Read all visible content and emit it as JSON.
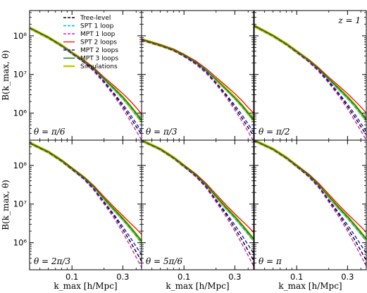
{
  "chart_data": {
    "type": "line",
    "layout": "2x3 panels, shared x and y axes",
    "xlabel": "k_max [h/Mpc]",
    "ylabel": "B(k_max, θ)",
    "xscale": "log",
    "yscale": "log",
    "xlim": [
      0.04,
      0.45
    ],
    "ylim": [
      200000,
      450000000
    ],
    "xticks": [
      {
        "value": 0.1,
        "label": "0.1"
      },
      {
        "value": 0.3,
        "label": "0.3"
      }
    ],
    "yticks": [
      {
        "value": 1000000,
        "label": "10⁶"
      },
      {
        "value": 10000000,
        "label": "10⁷"
      },
      {
        "value": 100000000,
        "label": "10⁸"
      }
    ],
    "redshift_label": "z = 1",
    "legend_location": "top of first panel",
    "x": [
      0.04,
      0.06,
      0.08,
      0.1,
      0.13,
      0.16,
      0.2,
      0.25,
      0.3,
      0.35,
      0.4,
      0.45
    ],
    "series": [
      {
        "name": "Tree-level",
        "color": "#000000",
        "dash": true
      },
      {
        "name": "SPT 1 loop",
        "color": "#00bcd4",
        "dash": true
      },
      {
        "name": "MPT 1 loop",
        "color": "#d11fd1",
        "dash": true
      },
      {
        "name": "SPT 2 loops",
        "color": "#ee1c1c",
        "dash": false
      },
      {
        "name": "MPT 2 loops",
        "color": "#1a1ab8",
        "dash": true
      },
      {
        "name": "MPT 3 loops",
        "color": "#0f7a0f",
        "dash": false
      },
      {
        "name": "Simulations",
        "color": "#c8c800",
        "dash": false,
        "band": true
      }
    ],
    "panels": [
      {
        "label": "θ = π/6",
        "values": {
          "Tree-level": [
            160000000,
            90000000,
            55000000,
            35000000,
            21000000,
            13000000,
            6500000,
            3000000,
            1500000,
            800000,
            450000,
            280000
          ],
          "SPT 1 loop": [
            162000000,
            91000000,
            56000000,
            36000000,
            22000000,
            14000000,
            7500000,
            4000000,
            2400000,
            1500000,
            900000,
            600000
          ],
          "MPT 1 loop": [
            158000000,
            89000000,
            54000000,
            34000000,
            20000000,
            12000000,
            6000000,
            2700000,
            1300000,
            650000,
            350000,
            200000
          ],
          "SPT 2 loops": [
            162000000,
            92000000,
            57000000,
            37000000,
            23000000,
            15000000,
            8500000,
            5000000,
            3200000,
            2100000,
            1400000,
            950000
          ],
          "MPT 2 loops": [
            160000000,
            90000000,
            55000000,
            35000000,
            21000000,
            13000000,
            6700000,
            3200000,
            1700000,
            950000,
            550000,
            330000
          ],
          "MPT 3 loops": [
            161000000,
            91000000,
            56000000,
            36000000,
            22000000,
            14000000,
            7800000,
            4300000,
            2600000,
            1600000,
            1000000,
            650000
          ],
          "Simulations": [
            160000000,
            90000000,
            56000000,
            36000000,
            22000000,
            14000000,
            7600000,
            4200000,
            2500000,
            1500000,
            950000,
            620000
          ]
        }
      },
      {
        "label": "θ = π/3",
        "values": {
          "Tree-level": [
            78000000,
            56000000,
            42000000,
            30000000,
            19000000,
            12000000,
            6000000,
            2800000,
            1400000,
            750000,
            420000,
            260000
          ],
          "SPT 1 loop": [
            80000000,
            58000000,
            44000000,
            32000000,
            21000000,
            13500000,
            7500000,
            4000000,
            2400000,
            1500000,
            950000,
            650000
          ],
          "MPT 1 loop": [
            76000000,
            55000000,
            41000000,
            29000000,
            18000000,
            11000000,
            5600000,
            2500000,
            1200000,
            620000,
            330000,
            190000
          ],
          "SPT 2 loops": [
            82000000,
            59000000,
            45000000,
            33000000,
            22000000,
            14500000,
            8500000,
            5000000,
            3200000,
            2100000,
            1400000,
            1000000
          ],
          "MPT 2 loops": [
            78000000,
            56000000,
            42000000,
            30000000,
            19000000,
            12000000,
            6200000,
            3000000,
            1600000,
            900000,
            520000,
            320000
          ],
          "MPT 3 loops": [
            80000000,
            57000000,
            43000000,
            31500000,
            20500000,
            13000000,
            7400000,
            4100000,
            2500000,
            1600000,
            1000000,
            680000
          ],
          "Simulations": [
            80000000,
            57000000,
            43000000,
            31500000,
            20500000,
            13000000,
            7400000,
            4100000,
            2500000,
            1550000,
            1000000,
            660000
          ]
        }
      },
      {
        "label": "θ = π/2",
        "values": {
          "Tree-level": [
            180000000,
            100000000,
            60000000,
            38000000,
            22000000,
            13000000,
            6500000,
            3000000,
            1500000,
            800000,
            450000,
            270000
          ],
          "SPT 1 loop": [
            182000000,
            101000000,
            61000000,
            39000000,
            23000000,
            14000000,
            7500000,
            4000000,
            2400000,
            1500000,
            950000,
            640000
          ],
          "MPT 1 loop": [
            178000000,
            99000000,
            59000000,
            37000000,
            21000000,
            12000000,
            6000000,
            2700000,
            1300000,
            650000,
            350000,
            200000
          ],
          "SPT 2 loops": [
            183000000,
            102000000,
            62000000,
            40000000,
            24000000,
            15000000,
            8500000,
            5000000,
            3200000,
            2100000,
            1450000,
            1000000
          ],
          "MPT 2 loops": [
            180000000,
            100000000,
            60000000,
            38000000,
            22000000,
            13000000,
            6800000,
            3200000,
            1700000,
            950000,
            550000,
            330000
          ],
          "MPT 3 loops": [
            181000000,
            101000000,
            61000000,
            39000000,
            23000000,
            14000000,
            7800000,
            4300000,
            2600000,
            1650000,
            1050000,
            680000
          ],
          "Simulations": [
            180000000,
            100000000,
            61000000,
            39000000,
            23000000,
            14000000,
            7700000,
            4200000,
            2550000,
            1600000,
            1000000,
            660000
          ]
        }
      },
      {
        "label": "θ = 2π/3",
        "values": {
          "Tree-level": [
            380000000,
            220000000,
            130000000,
            80000000,
            45000000,
            25000000,
            11000000,
            4800000,
            2200000,
            1100000,
            580000,
            330000
          ],
          "SPT 1 loop": [
            385000000,
            223000000,
            133000000,
            83000000,
            48000000,
            28000000,
            13500000,
            6800000,
            3900000,
            2400000,
            1500000,
            1000000
          ],
          "MPT 1 loop": [
            375000000,
            218000000,
            128000000,
            78000000,
            43000000,
            23000000,
            10000000,
            4200000,
            1800000,
            850000,
            420000,
            230000
          ],
          "SPT 2 loops": [
            388000000,
            226000000,
            136000000,
            86000000,
            50000000,
            30000000,
            15500000,
            8200000,
            5000000,
            3300000,
            2300000,
            1650000
          ],
          "MPT 2 loops": [
            380000000,
            220000000,
            130000000,
            80000000,
            45000000,
            25000000,
            11500000,
            5200000,
            2600000,
            1400000,
            800000,
            480000
          ],
          "MPT 3 loops": [
            383000000,
            223000000,
            133000000,
            83000000,
            48000000,
            28000000,
            14000000,
            7200000,
            4200000,
            2600000,
            1650000,
            1100000
          ],
          "Simulations": [
            382000000,
            222000000,
            132000000,
            82000000,
            47500000,
            27500000,
            13500000,
            7000000,
            4100000,
            2500000,
            1600000,
            1050000
          ]
        }
      },
      {
        "label": "θ = 5π/6",
        "values": {
          "Tree-level": [
            440000000,
            260000000,
            155000000,
            95000000,
            53000000,
            29000000,
            12500000,
            5300000,
            2400000,
            1200000,
            620000,
            350000
          ],
          "SPT 1 loop": [
            445000000,
            263000000,
            158000000,
            98000000,
            56000000,
            32000000,
            15500000,
            7500000,
            4300000,
            2600000,
            1650000,
            1100000
          ],
          "MPT 1 loop": [
            435000000,
            257000000,
            152000000,
            92000000,
            50000000,
            27000000,
            11300000,
            4600000,
            2000000,
            930000,
            460000,
            250000
          ],
          "SPT 2 loops": [
            448000000,
            266000000,
            161000000,
            101000000,
            59000000,
            35000000,
            18000000,
            9300000,
            5600000,
            3700000,
            2600000,
            1850000
          ],
          "MPT 2 loops": [
            440000000,
            260000000,
            155000000,
            95000000,
            53000000,
            29000000,
            13000000,
            5800000,
            2900000,
            1550000,
            880000,
            530000
          ],
          "MPT 3 loops": [
            443000000,
            263000000,
            158000000,
            98000000,
            56000000,
            32000000,
            16000000,
            8000000,
            4700000,
            2900000,
            1850000,
            1250000
          ],
          "Simulations": [
            442000000,
            262000000,
            157000000,
            97000000,
            55500000,
            31500000,
            15500000,
            7800000,
            4600000,
            2800000,
            1800000,
            1200000
          ]
        }
      },
      {
        "label": "θ = π",
        "values": {
          "Tree-level": [
            440000000,
            260000000,
            155000000,
            95000000,
            53000000,
            29000000,
            12500000,
            5300000,
            2400000,
            1200000,
            620000,
            350000
          ],
          "SPT 1 loop": [
            445000000,
            263000000,
            158000000,
            98000000,
            56000000,
            32000000,
            15500000,
            7500000,
            4300000,
            2600000,
            1650000,
            1100000
          ],
          "MPT 1 loop": [
            435000000,
            257000000,
            152000000,
            92000000,
            50000000,
            27000000,
            11300000,
            4600000,
            2000000,
            930000,
            460000,
            250000
          ],
          "SPT 2 loops": [
            448000000,
            266000000,
            161000000,
            101000000,
            59000000,
            35000000,
            18000000,
            9300000,
            5600000,
            3700000,
            2600000,
            1850000
          ],
          "MPT 2 loops": [
            440000000,
            260000000,
            155000000,
            95000000,
            53000000,
            29000000,
            13000000,
            5800000,
            2900000,
            1550000,
            880000,
            530000
          ],
          "MPT 3 loops": [
            443000000,
            263000000,
            158000000,
            98000000,
            56000000,
            32000000,
            16000000,
            8000000,
            4700000,
            2900000,
            1850000,
            1250000
          ],
          "Simulations": [
            442000000,
            262000000,
            157000000,
            97000000,
            55500000,
            31500000,
            15500000,
            7800000,
            4600000,
            2800000,
            1800000,
            1200000
          ]
        }
      }
    ]
  }
}
